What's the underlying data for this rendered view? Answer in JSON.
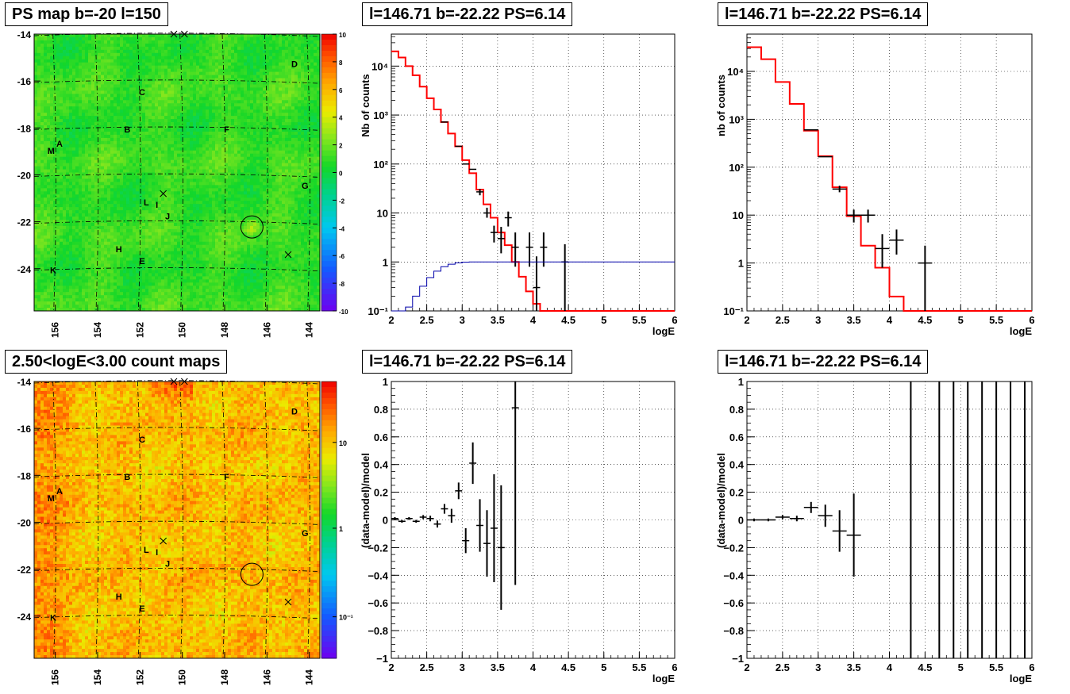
{
  "panels": {
    "ps_map": {
      "title": "PS map b=-20 l=150"
    },
    "count_map": {
      "title": "2.50<logE<3.00 count maps"
    },
    "spec_a": {
      "title": "l=146.71 b=-22.22 PS=6.14"
    },
    "spec_b": {
      "title": "l=146.71 b=-22.22 PS=6.14"
    },
    "res_a": {
      "title": "l=146.71 b=-22.22 PS=6.14"
    },
    "res_b": {
      "title": "l=146.71 b=-22.22 PS=6.14"
    }
  },
  "colors": {
    "data": "#000000",
    "model": "#ff0000",
    "efficiency": "#0000aa",
    "grid": "#000000"
  },
  "chart_data": [
    {
      "id": "ps_map",
      "type": "heatmap",
      "title": "PS map b=-20 l=150",
      "xlabel": "",
      "ylabel": "",
      "xlim": [
        157,
        143.5
      ],
      "ylim": [
        -25.8,
        -14
      ],
      "x_ticks": [
        "156",
        "154",
        "152",
        "150",
        "148",
        "146",
        "144"
      ],
      "y_ticks": [
        "-14",
        "-16",
        "-18",
        "-20",
        "-22",
        "-24"
      ],
      "colorbar": {
        "min": -10,
        "max": 10,
        "ticks": [
          "10",
          "8",
          "6",
          "4",
          "2",
          "0",
          "-2",
          "-4",
          "-6",
          "-8",
          "-10"
        ]
      },
      "labels": [
        {
          "text": "A",
          "l": 155.8,
          "b": -18.8
        },
        {
          "text": "M",
          "l": 156.2,
          "b": -19.1
        },
        {
          "text": "B",
          "l": 152.6,
          "b": -18.2
        },
        {
          "text": "C",
          "l": 151.9,
          "b": -16.6
        },
        {
          "text": "D",
          "l": 144.7,
          "b": -15.4
        },
        {
          "text": "E",
          "l": 151.9,
          "b": -23.8
        },
        {
          "text": "F",
          "l": 147.9,
          "b": -18.2
        },
        {
          "text": "G",
          "l": 144.2,
          "b": -20.6
        },
        {
          "text": "H",
          "l": 153.0,
          "b": -23.3
        },
        {
          "text": "I",
          "l": 151.2,
          "b": -21.4
        },
        {
          "text": "J",
          "l": 150.7,
          "b": -21.9
        },
        {
          "text": "K",
          "l": 156.1,
          "b": -24.2
        },
        {
          "text": "L",
          "l": 151.7,
          "b": -21.3
        }
      ],
      "source_circle": {
        "l": 146.71,
        "b": -22.22
      },
      "crosses": [
        {
          "l": 150.4,
          "b": -14
        },
        {
          "l": 149.9,
          "b": -14
        },
        {
          "l": 150.9,
          "b": -20.8
        },
        {
          "l": 145.0,
          "b": -23.4
        }
      ]
    },
    {
      "id": "count_map",
      "type": "heatmap",
      "title": "2.50<logE<3.00 count maps",
      "xlabel": "",
      "ylabel": "",
      "xlim": [
        157,
        143.5
      ],
      "ylim": [
        -25.8,
        -14
      ],
      "x_ticks": [
        "156",
        "154",
        "152",
        "150",
        "148",
        "146",
        "144"
      ],
      "y_ticks": [
        "-14",
        "-16",
        "-18",
        "-20",
        "-22",
        "-24"
      ],
      "colorbar": {
        "scale": "log",
        "ticks": [
          "10",
          "1",
          "10⁻¹"
        ]
      },
      "labels": [
        {
          "text": "A",
          "l": 155.8,
          "b": -18.8
        },
        {
          "text": "M",
          "l": 156.2,
          "b": -19.1
        },
        {
          "text": "B",
          "l": 152.6,
          "b": -18.2
        },
        {
          "text": "C",
          "l": 151.9,
          "b": -16.6
        },
        {
          "text": "D",
          "l": 144.7,
          "b": -15.4
        },
        {
          "text": "E",
          "l": 151.9,
          "b": -23.8
        },
        {
          "text": "F",
          "l": 147.9,
          "b": -18.2
        },
        {
          "text": "G",
          "l": 144.2,
          "b": -20.6
        },
        {
          "text": "H",
          "l": 153.0,
          "b": -23.3
        },
        {
          "text": "I",
          "l": 151.2,
          "b": -21.4
        },
        {
          "text": "J",
          "l": 150.7,
          "b": -21.9
        },
        {
          "text": "K",
          "l": 156.1,
          "b": -24.2
        },
        {
          "text": "L",
          "l": 151.7,
          "b": -21.3
        }
      ],
      "source_circle": {
        "l": 146.71,
        "b": -22.22
      },
      "crosses": [
        {
          "l": 150.4,
          "b": -14
        },
        {
          "l": 149.9,
          "b": -14
        },
        {
          "l": 150.9,
          "b": -20.8
        },
        {
          "l": 145.0,
          "b": -23.4
        }
      ]
    },
    {
      "id": "spec_a",
      "type": "line",
      "title": "l=146.71 b=-22.22 PS=6.14",
      "xlabel": "logE",
      "ylabel": "Nb of counts",
      "xlim": [
        2,
        6
      ],
      "ylim": [
        0.1,
        45000
      ],
      "yscale": "log",
      "x_ticks": [
        "2",
        "2.5",
        "3",
        "3.5",
        "4",
        "4.5",
        "5",
        "5.5",
        "6"
      ],
      "y_ticks": [
        {
          "v": 0.1,
          "t": "10⁻¹"
        },
        {
          "v": 1,
          "t": "1"
        },
        {
          "v": 10,
          "t": "10"
        },
        {
          "v": 100,
          "t": "10²"
        },
        {
          "v": 1000,
          "t": "10³"
        },
        {
          "v": 10000,
          "t": "10⁴"
        }
      ],
      "grid": true,
      "bin_width": 0.1,
      "series": [
        {
          "kind": "step",
          "edges": [
            2,
            2.1,
            2.2,
            2.3,
            2.4,
            2.5,
            2.6,
            2.7,
            2.8,
            2.9,
            3.0,
            3.1,
            3.2,
            3.3,
            3.4,
            3.5,
            3.6,
            3.7,
            3.8,
            3.9,
            4.0,
            4.1,
            4.2,
            6.0
          ],
          "values": [
            20000,
            15000,
            10000,
            6500,
            3800,
            2200,
            1300,
            720,
            420,
            230,
            120,
            65,
            30,
            15,
            8,
            4,
            2.2,
            1.0,
            0.5,
            0.25,
            0.14,
            0.1,
            0.1
          ]
        },
        {
          "kind": "data",
          "points": [
            [
              2.75,
              720,
              0,
              0
            ],
            [
              2.95,
              230,
              0,
              0
            ],
            [
              3.05,
              100,
              0,
              0
            ],
            [
              3.15,
              78,
              0,
              0
            ],
            [
              3.25,
              27,
              23,
              31
            ],
            [
              3.35,
              10,
              8,
              12.8
            ],
            [
              3.45,
              4,
              2.5,
              5.5
            ],
            [
              3.55,
              3,
              1.5,
              5.2
            ],
            [
              3.65,
              8,
              5.3,
              10.7
            ],
            [
              3.75,
              2,
              0.8,
              4
            ],
            [
              3.95,
              2,
              0.8,
              4
            ],
            [
              4.05,
              0.3,
              0.1,
              1.3
            ],
            [
              4.15,
              2,
              0.8,
              4
            ],
            [
              4.45,
              1,
              0.1,
              2.3
            ]
          ]
        },
        {
          "kind": "efficiency",
          "edges": [
            2.0,
            2.1,
            2.2,
            2.3,
            2.4,
            2.5,
            2.6,
            2.7,
            2.8,
            2.9,
            3.0,
            3.1,
            6.0
          ],
          "values": [
            0.1,
            0.1,
            0.12,
            0.2,
            0.32,
            0.48,
            0.65,
            0.8,
            0.9,
            0.96,
            0.99,
            1.0
          ]
        }
      ]
    },
    {
      "id": "spec_b",
      "type": "line",
      "title": "l=146.71 b=-22.22 PS=6.14",
      "xlabel": "logE",
      "ylabel": "nb of counts",
      "xlim": [
        2,
        6
      ],
      "ylim": [
        0.1,
        60000
      ],
      "yscale": "log",
      "x_ticks": [
        "2",
        "2.5",
        "3",
        "3.5",
        "4",
        "4.5",
        "5",
        "5.5",
        "6"
      ],
      "y_ticks": [
        {
          "v": 0.1,
          "t": "10⁻¹"
        },
        {
          "v": 1,
          "t": "1"
        },
        {
          "v": 10,
          "t": "10"
        },
        {
          "v": 100,
          "t": "10²"
        },
        {
          "v": 1000,
          "t": "10³"
        },
        {
          "v": 10000,
          "t": "10⁴"
        }
      ],
      "grid": true,
      "bin_width": 0.2,
      "series": [
        {
          "kind": "step",
          "edges": [
            2.0,
            2.2,
            2.4,
            2.6,
            2.8,
            3.0,
            3.2,
            3.4,
            3.6,
            3.8,
            4.0,
            4.2,
            6.0
          ],
          "values": [
            32000,
            18000,
            6000,
            2100,
            580,
            170,
            38,
            9.5,
            2.3,
            0.8,
            0.2,
            0.1
          ]
        },
        {
          "kind": "data",
          "points": [
            [
              2.9,
              600,
              0,
              0
            ],
            [
              3.1,
              165,
              0,
              0
            ],
            [
              3.3,
              35,
              30,
              41
            ],
            [
              3.5,
              10,
              7,
              13
            ],
            [
              3.7,
              10,
              7,
              13
            ],
            [
              3.9,
              2,
              0.8,
              4
            ],
            [
              4.1,
              3,
              1.5,
              5
            ],
            [
              4.5,
              1,
              0.1,
              2.3
            ]
          ]
        }
      ]
    },
    {
      "id": "res_a",
      "type": "scatter",
      "title": "l=146.71 b=-22.22 PS=6.14",
      "xlabel": "logE",
      "ylabel": "(data-model)/model",
      "xlim": [
        2,
        6
      ],
      "ylim": [
        -1,
        1
      ],
      "x_ticks": [
        "2",
        "2.5",
        "3",
        "3.5",
        "4",
        "4.5",
        "5",
        "5.5",
        "6"
      ],
      "y_ticks": [
        "1",
        "0.8",
        "0.6",
        "0.4",
        "0.2",
        "0",
        "-0.2",
        "-0.4",
        "-0.6",
        "-0.8",
        "-1"
      ],
      "grid": true,
      "bin_width": 0.1,
      "points": [
        [
          2.05,
          0.01,
          0.01
        ],
        [
          2.15,
          -0.01,
          0.01
        ],
        [
          2.25,
          0.01,
          0.01
        ],
        [
          2.35,
          -0.01,
          0.01
        ],
        [
          2.45,
          0.02,
          0.015
        ],
        [
          2.55,
          0.01,
          0.02
        ],
        [
          2.65,
          -0.03,
          0.025
        ],
        [
          2.75,
          0.08,
          0.035
        ],
        [
          2.85,
          0.03,
          0.05
        ],
        [
          2.95,
          0.21,
          0.06
        ],
        [
          3.05,
          -0.15,
          0.09
        ],
        [
          3.15,
          0.41,
          0.15
        ],
        [
          3.25,
          -0.04,
          0.19
        ],
        [
          3.35,
          -0.17,
          0.24
        ],
        [
          3.45,
          -0.06,
          0.39
        ],
        [
          3.55,
          -0.2,
          0.45
        ],
        [
          3.75,
          0.81,
          1.28
        ]
      ]
    },
    {
      "id": "res_b",
      "type": "scatter",
      "title": "l=146.71 b=-22.22 PS=6.14",
      "xlabel": "logE",
      "ylabel": "(data-model)/model",
      "xlim": [
        2,
        6
      ],
      "ylim": [
        -1,
        1
      ],
      "x_ticks": [
        "2",
        "2.5",
        "3",
        "3.5",
        "4",
        "4.5",
        "5",
        "5.5",
        "6"
      ],
      "y_ticks": [
        "1",
        "0.8",
        "0.6",
        "0.4",
        "0.2",
        "0",
        "-0.2",
        "-0.4",
        "-0.6",
        "-0.8",
        "-1"
      ],
      "grid": true,
      "bin_width": 0.2,
      "points": [
        [
          2.1,
          0.0,
          0.01
        ],
        [
          2.3,
          0.0,
          0.01
        ],
        [
          2.5,
          0.02,
          0.015
        ],
        [
          2.7,
          0.01,
          0.02
        ],
        [
          2.9,
          0.09,
          0.04
        ],
        [
          3.1,
          0.03,
          0.08
        ],
        [
          3.3,
          -0.08,
          0.15
        ],
        [
          3.5,
          -0.11,
          0.3
        ]
      ],
      "vertical_lines": [
        4.3,
        4.7,
        4.9,
        5.1,
        5.3,
        5.5,
        5.7,
        5.9
      ]
    }
  ]
}
